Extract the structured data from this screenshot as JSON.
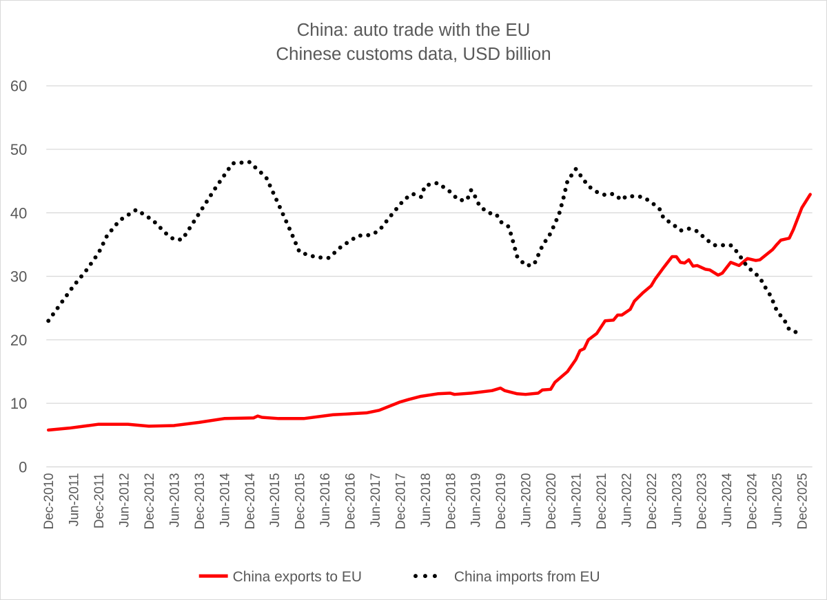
{
  "chart_data": {
    "type": "line",
    "title": "China: auto trade with the EU",
    "subtitle": "Chinese customs data, USD billion",
    "xlabel": "",
    "ylabel": "",
    "ylim": [
      0,
      60
    ],
    "yticks": [
      "0",
      "10",
      "20",
      "30",
      "40",
      "50",
      "60"
    ],
    "xlim": [
      "2010-12",
      "2026-02"
    ],
    "xticks": [
      "Dec-2010",
      "Jun-2011",
      "Dec-2011",
      "Jun-2012",
      "Dec-2012",
      "Jun-2013",
      "Dec-2013",
      "Jun-2014",
      "Dec-2014",
      "Jun-2015",
      "Dec-2015",
      "Jun-2016",
      "Dec-2016",
      "Jun-2017",
      "Dec-2017",
      "Jun-2018",
      "Dec-2018",
      "Jun-2019",
      "Dec-2019",
      "Jun-2020",
      "Dec-2020",
      "Jun-2021",
      "Dec-2021",
      "Jun-2022",
      "Dec-2022",
      "Jun-2023",
      "Dec-2023",
      "Jun-2024",
      "Dec-2024",
      "Jun-2025",
      "Dec-2025"
    ],
    "grid": true,
    "legend_position": "bottom",
    "series": [
      {
        "name": "China exports to EU",
        "color": "#ff0000",
        "style": "solid",
        "points": [
          [
            "2010-12",
            5.8
          ],
          [
            "2011-05",
            6.1
          ],
          [
            "2011-12",
            6.7
          ],
          [
            "2012-07",
            6.7
          ],
          [
            "2012-12",
            6.4
          ],
          [
            "2013-06",
            6.5
          ],
          [
            "2013-12",
            7.0
          ],
          [
            "2014-06",
            7.6
          ],
          [
            "2015-01",
            7.7
          ],
          [
            "2015-02",
            8.0
          ],
          [
            "2015-03",
            7.8
          ],
          [
            "2015-07",
            7.6
          ],
          [
            "2016-01",
            7.6
          ],
          [
            "2016-08",
            8.2
          ],
          [
            "2016-11",
            8.3
          ],
          [
            "2017-04",
            8.5
          ],
          [
            "2017-07",
            8.9
          ],
          [
            "2017-12",
            10.2
          ],
          [
            "2018-02",
            10.6
          ],
          [
            "2018-05",
            11.1
          ],
          [
            "2018-09",
            11.5
          ],
          [
            "2018-12",
            11.6
          ],
          [
            "2019-01",
            11.4
          ],
          [
            "2019-05",
            11.6
          ],
          [
            "2019-10",
            12.0
          ],
          [
            "2019-12",
            12.4
          ],
          [
            "2020-01",
            12.0
          ],
          [
            "2020-04",
            11.5
          ],
          [
            "2020-06",
            11.4
          ],
          [
            "2020-09",
            11.6
          ],
          [
            "2020-10",
            12.1
          ],
          [
            "2020-12",
            12.2
          ],
          [
            "2021-01",
            13.3
          ],
          [
            "2021-04",
            15.0
          ],
          [
            "2021-06",
            16.9
          ],
          [
            "2021-07",
            18.3
          ],
          [
            "2021-08",
            18.6
          ],
          [
            "2021-09",
            20.0
          ],
          [
            "2021-11",
            21.0
          ],
          [
            "2022-01",
            23.0
          ],
          [
            "2022-03",
            23.1
          ],
          [
            "2022-04",
            23.9
          ],
          [
            "2022-05",
            23.9
          ],
          [
            "2022-07",
            24.8
          ],
          [
            "2022-08",
            26.1
          ],
          [
            "2022-10",
            27.4
          ],
          [
            "2022-12",
            28.5
          ],
          [
            "2023-01",
            29.6
          ],
          [
            "2023-03",
            31.4
          ],
          [
            "2023-05",
            33.1
          ],
          [
            "2023-06",
            33.1
          ],
          [
            "2023-07",
            32.2
          ],
          [
            "2023-08",
            32.1
          ],
          [
            "2023-09",
            32.6
          ],
          [
            "2023-10",
            31.6
          ],
          [
            "2023-11",
            31.7
          ],
          [
            "2024-01",
            31.1
          ],
          [
            "2024-02",
            31.0
          ],
          [
            "2024-04",
            30.2
          ],
          [
            "2024-05",
            30.5
          ],
          [
            "2024-07",
            32.2
          ],
          [
            "2024-09",
            31.7
          ],
          [
            "2024-11",
            32.8
          ],
          [
            "2025-01",
            32.5
          ],
          [
            "2025-02",
            32.6
          ],
          [
            "2025-05",
            34.2
          ],
          [
            "2025-06",
            35.0
          ],
          [
            "2025-07",
            35.7
          ],
          [
            "2025-09",
            36.0
          ],
          [
            "2025-10",
            37.4
          ],
          [
            "2025-11",
            39.1
          ],
          [
            "2025-12",
            40.8
          ],
          [
            "2026-02",
            42.9
          ]
        ]
      },
      {
        "name": "China imports from EU",
        "color": "#000000",
        "style": "dotted",
        "points": [
          [
            "2010-12",
            23.0
          ],
          [
            "2011-06",
            28.5
          ],
          [
            "2011-09",
            30.9
          ],
          [
            "2011-12",
            33.7
          ],
          [
            "2012-02",
            36.4
          ],
          [
            "2012-05",
            38.8
          ],
          [
            "2012-09",
            40.5
          ],
          [
            "2013-01",
            38.8
          ],
          [
            "2013-04",
            36.8
          ],
          [
            "2013-06",
            35.8
          ],
          [
            "2013-08",
            35.8
          ],
          [
            "2013-12",
            39.9
          ],
          [
            "2014-04",
            44.0
          ],
          [
            "2014-08",
            47.8
          ],
          [
            "2014-12",
            48.0
          ],
          [
            "2015-04",
            45.6
          ],
          [
            "2015-07",
            41.3
          ],
          [
            "2015-10",
            36.9
          ],
          [
            "2015-12",
            33.8
          ],
          [
            "2016-04",
            33.0
          ],
          [
            "2016-07",
            32.9
          ],
          [
            "2016-10",
            34.7
          ],
          [
            "2017-02",
            36.4
          ],
          [
            "2017-05",
            36.5
          ],
          [
            "2017-07",
            37.2
          ],
          [
            "2017-10",
            39.7
          ],
          [
            "2018-01",
            42.1
          ],
          [
            "2018-03",
            43.0
          ],
          [
            "2018-05",
            42.5
          ],
          [
            "2018-06",
            44.3
          ],
          [
            "2018-09",
            44.7
          ],
          [
            "2018-12",
            43.3
          ],
          [
            "2019-02",
            42.0
          ],
          [
            "2019-04",
            42.0
          ],
          [
            "2019-05",
            43.6
          ],
          [
            "2019-06",
            42.5
          ],
          [
            "2019-07",
            41.1
          ],
          [
            "2019-09",
            40.0
          ],
          [
            "2019-11",
            39.8
          ],
          [
            "2019-12",
            38.6
          ],
          [
            "2020-02",
            37.8
          ],
          [
            "2020-03",
            35.5
          ],
          [
            "2020-04",
            33.1
          ],
          [
            "2020-06",
            31.7
          ],
          [
            "2020-08",
            31.8
          ],
          [
            "2020-09",
            33.3
          ],
          [
            "2020-10",
            34.8
          ],
          [
            "2020-11",
            35.8
          ],
          [
            "2020-12",
            36.8
          ],
          [
            "2021-01",
            38.3
          ],
          [
            "2021-02",
            39.8
          ],
          [
            "2021-03",
            42.2
          ],
          [
            "2021-04",
            45.0
          ],
          [
            "2021-06",
            46.9
          ],
          [
            "2021-09",
            44.2
          ],
          [
            "2021-11",
            43.3
          ],
          [
            "2022-01",
            42.8
          ],
          [
            "2022-03",
            43.0
          ],
          [
            "2022-05",
            42.0
          ],
          [
            "2022-06",
            42.6
          ],
          [
            "2022-08",
            42.6
          ],
          [
            "2022-10",
            42.5
          ],
          [
            "2022-12",
            41.7
          ],
          [
            "2023-02",
            40.6
          ],
          [
            "2023-03",
            39.1
          ],
          [
            "2023-05",
            38.3
          ],
          [
            "2023-07",
            37.2
          ],
          [
            "2023-09",
            37.5
          ],
          [
            "2023-11",
            37.1
          ],
          [
            "2024-01",
            35.9
          ],
          [
            "2024-03",
            34.9
          ],
          [
            "2024-05",
            34.9
          ],
          [
            "2024-07",
            34.9
          ],
          [
            "2024-09",
            33.5
          ],
          [
            "2024-10",
            32.3
          ],
          [
            "2024-12",
            30.9
          ],
          [
            "2025-02",
            29.8
          ],
          [
            "2025-03",
            28.5
          ],
          [
            "2025-04",
            27.6
          ],
          [
            "2025-05",
            26.2
          ],
          [
            "2025-06",
            24.6
          ],
          [
            "2025-08",
            22.9
          ],
          [
            "2025-09",
            21.6
          ],
          [
            "2025-11",
            21.1
          ]
        ]
      }
    ]
  }
}
